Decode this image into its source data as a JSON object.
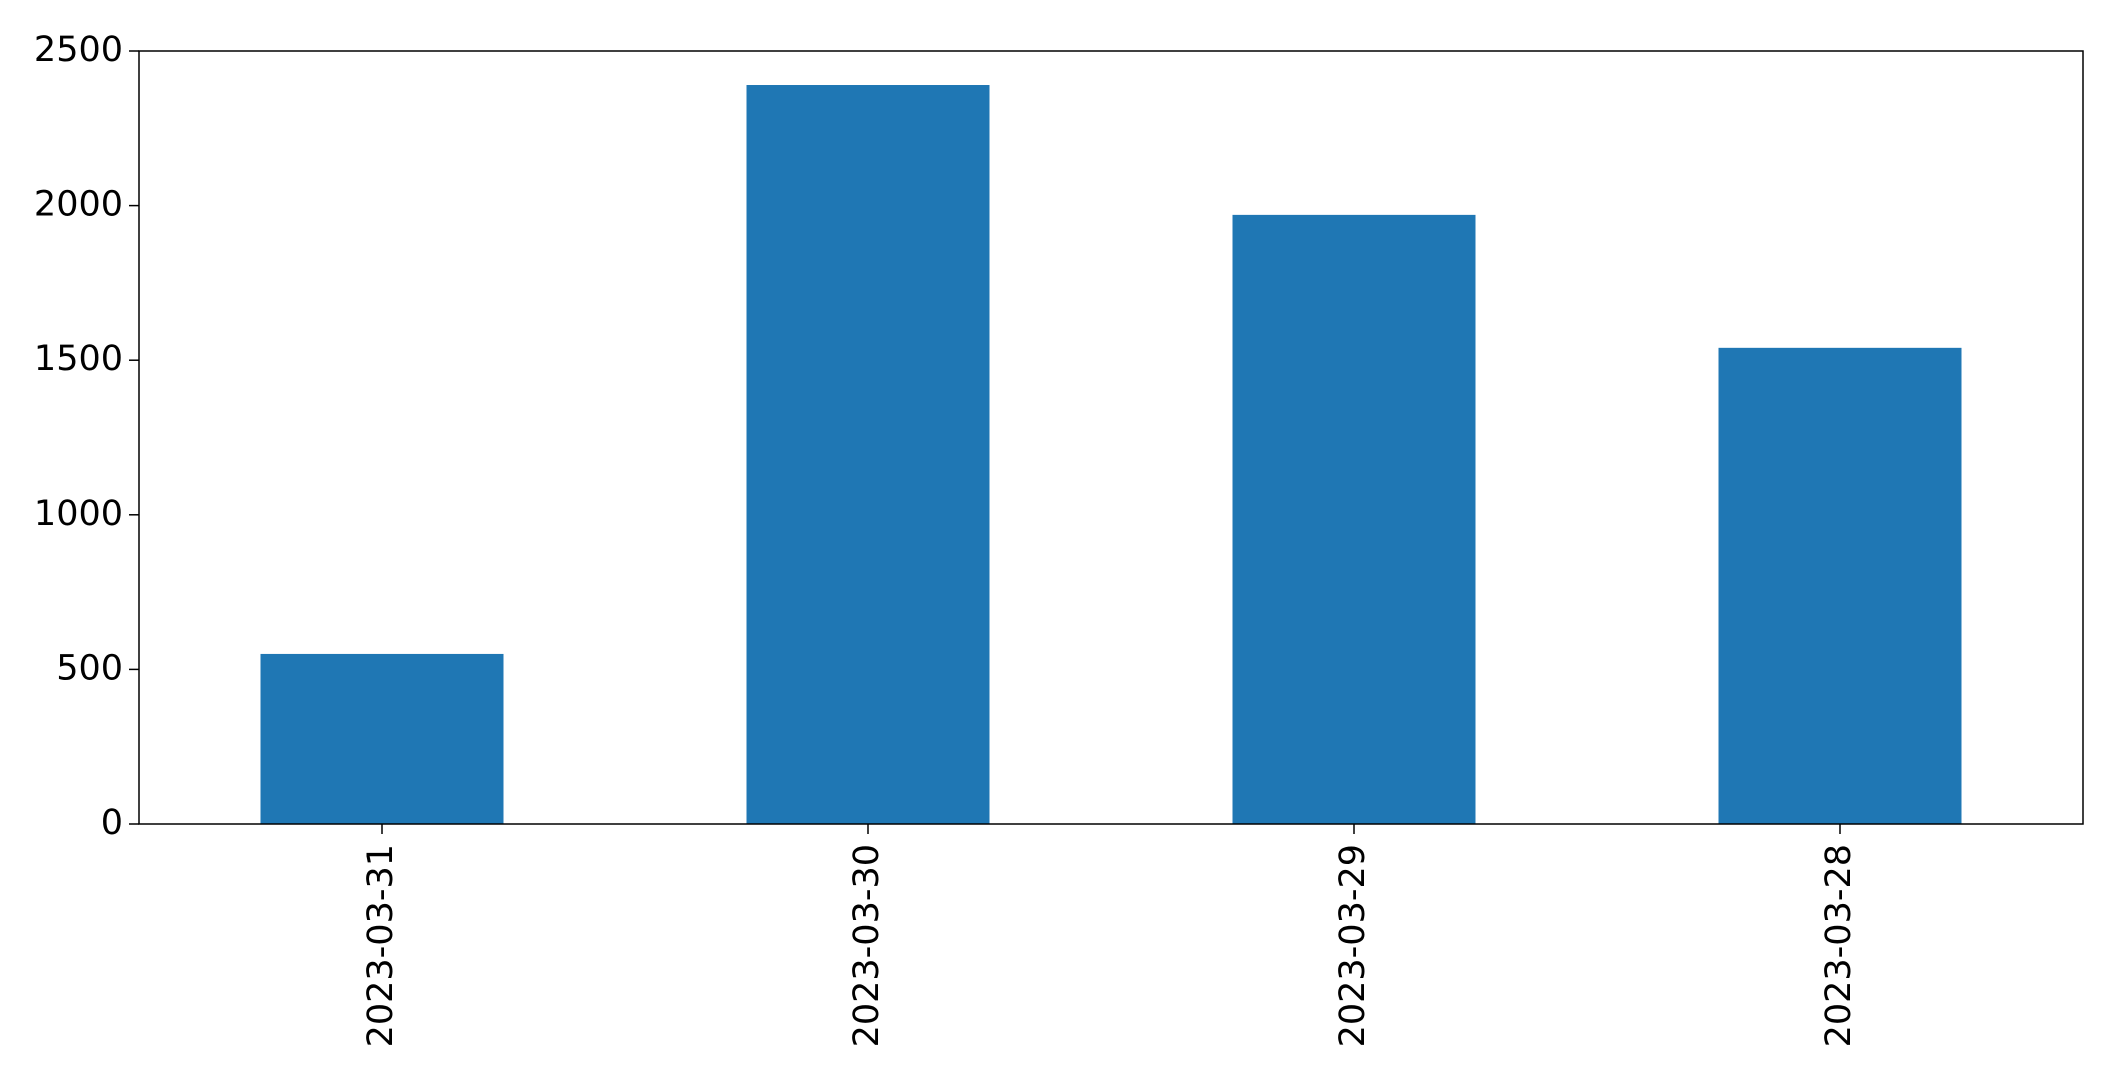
{
  "chart_data": {
    "type": "bar",
    "categories": [
      "2023-03-31",
      "2023-03-30",
      "2023-03-29",
      "2023-03-28"
    ],
    "values": [
      550,
      2390,
      1970,
      1540
    ],
    "ylim": [
      0,
      2500
    ],
    "yticks": [
      0,
      500,
      1000,
      1500,
      2000,
      2500
    ],
    "ytick_labels": [
      "0",
      "500",
      "1000",
      "1500",
      "2000",
      "2500"
    ],
    "xlabel": "",
    "ylabel": "",
    "grid": false,
    "legend": "none",
    "bar_color": "#1f77b4",
    "axis_color": "#000000"
  }
}
